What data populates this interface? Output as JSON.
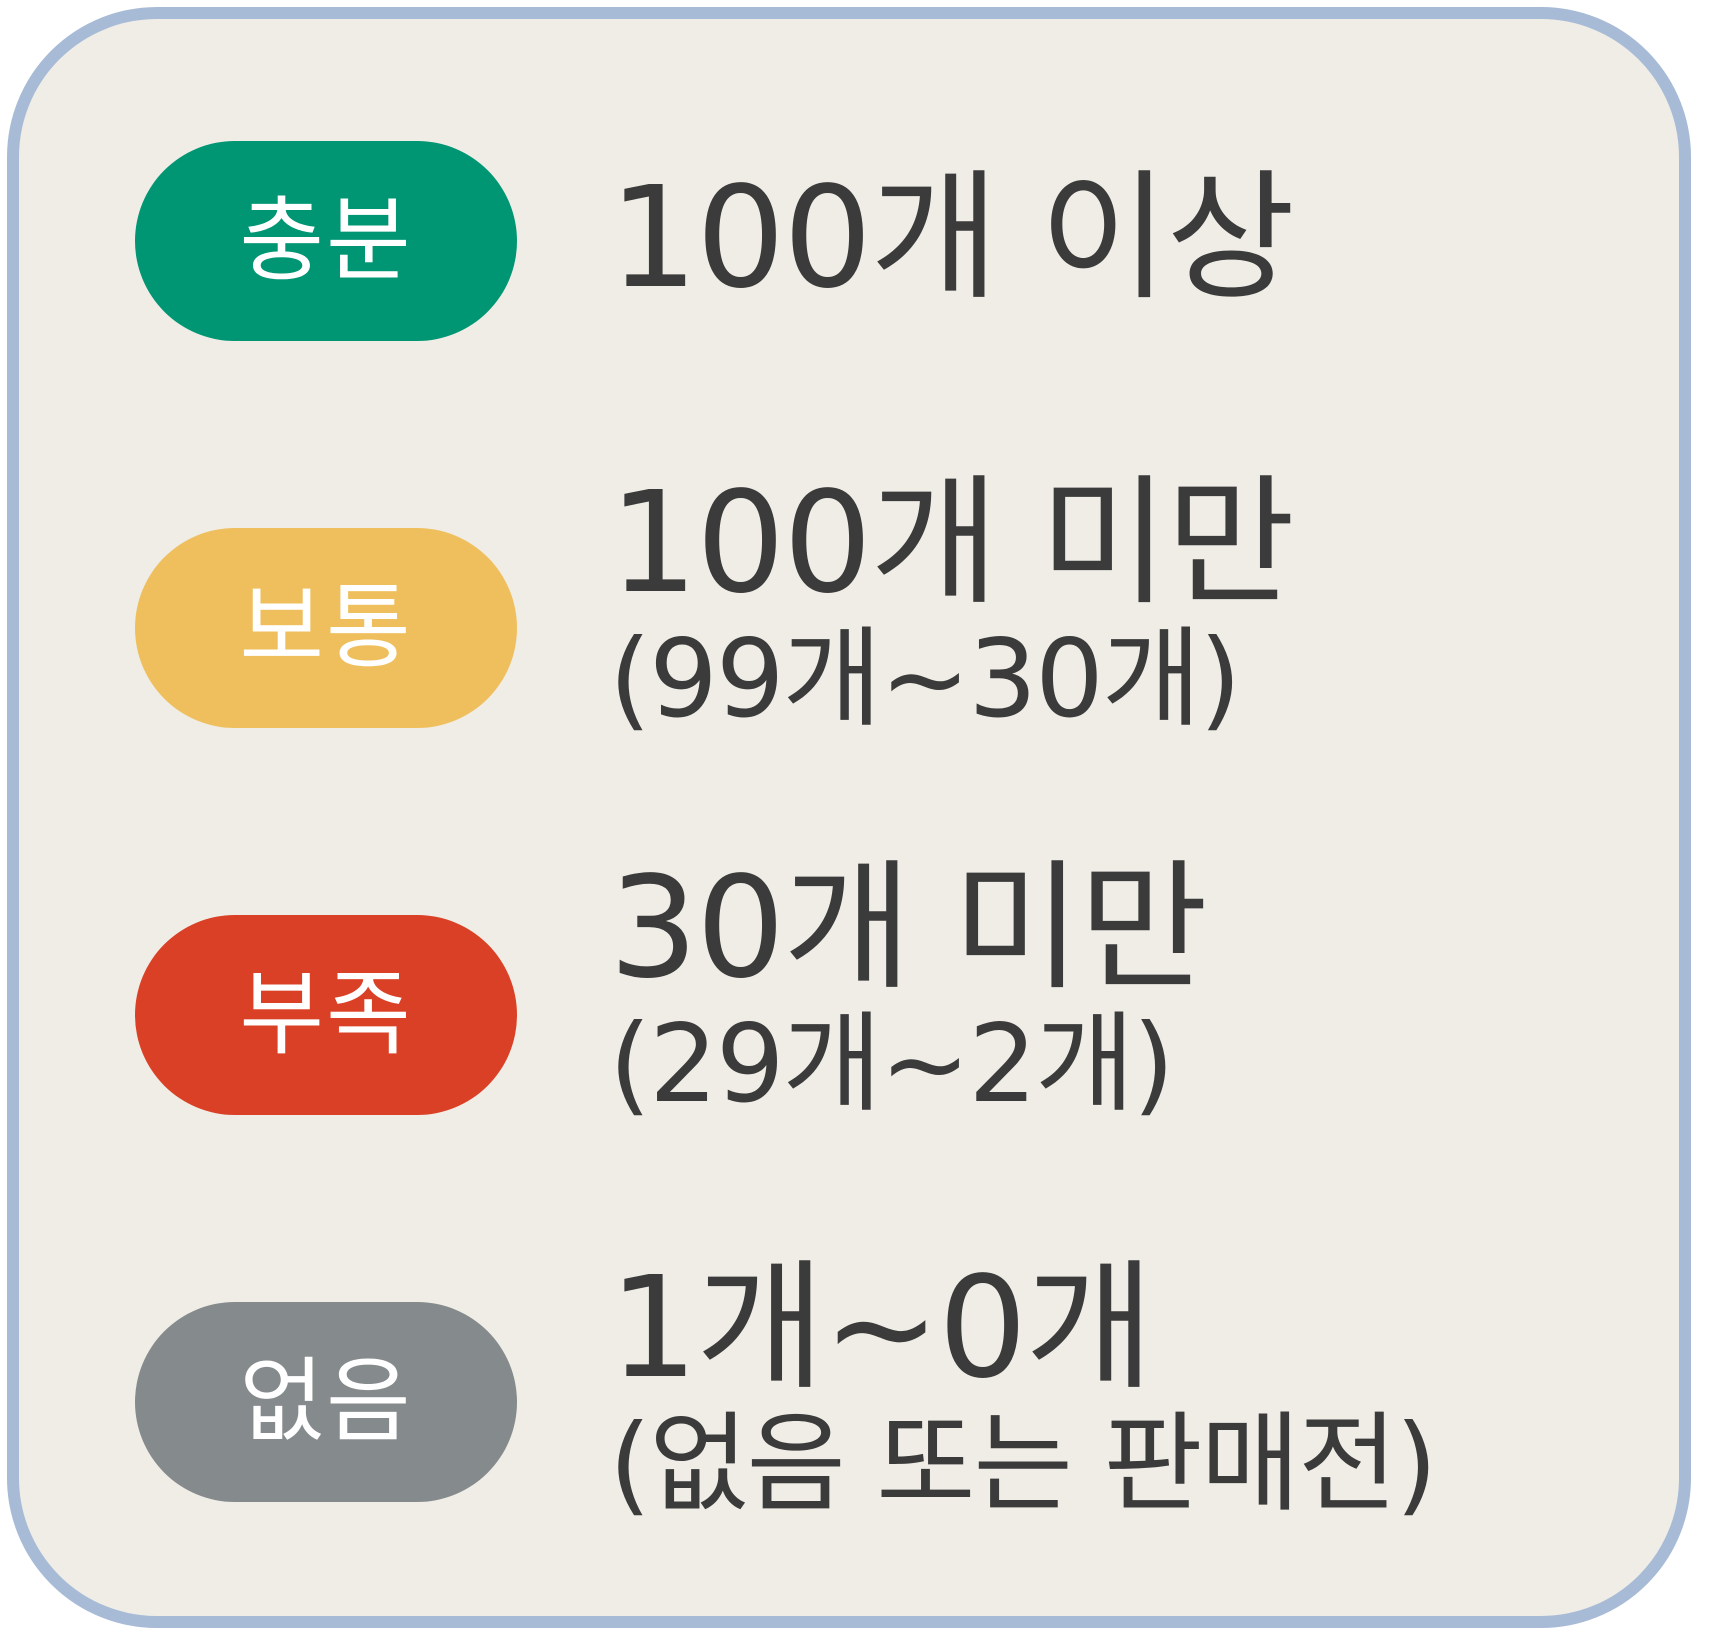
{
  "colors": {
    "border": "#a8bbd6",
    "background": "#efede6",
    "text": "#3b3b3b",
    "sufficient": "#009573",
    "normal": "#efbf5e",
    "shortage": "#da4025",
    "none": "#858a8c"
  },
  "legend": [
    {
      "status": "충분",
      "main": "100개 이상",
      "sub": ""
    },
    {
      "status": "보통",
      "main": "100개 미만",
      "sub": "(99개~30개)"
    },
    {
      "status": "부족",
      "main": "30개 미만",
      "sub": "(29개~2개)"
    },
    {
      "status": "없음",
      "main": "1개~0개",
      "sub": "(없음 또는 판매전)"
    }
  ]
}
